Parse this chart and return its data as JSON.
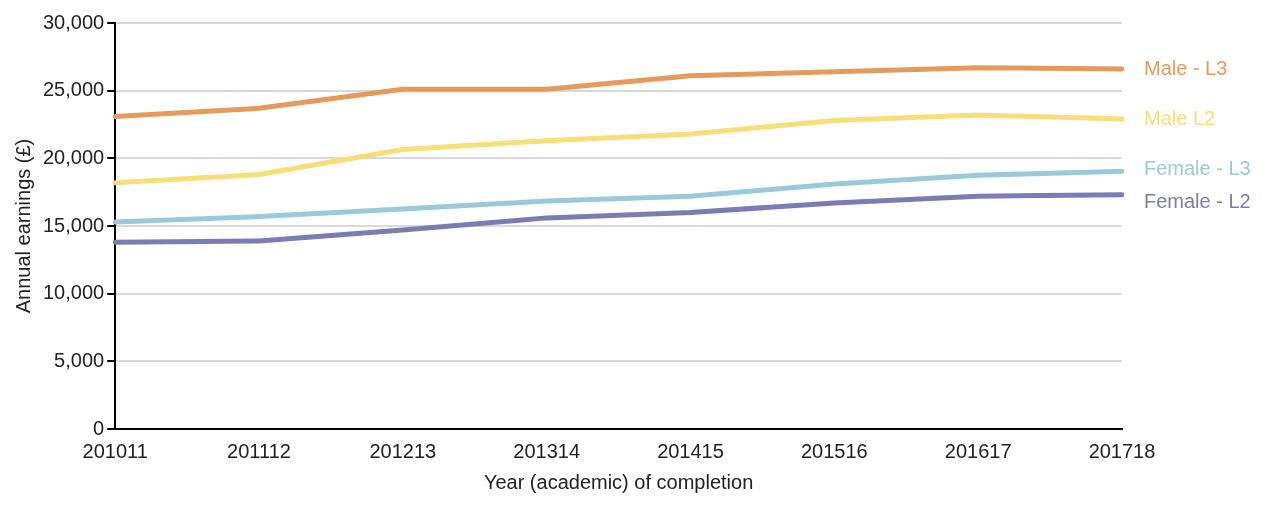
{
  "chart_data": {
    "type": "line",
    "xlabel": "Year (academic) of completion",
    "ylabel": "Annual earnings (£)",
    "categories": [
      "201011",
      "201112",
      "201213",
      "201314",
      "201415",
      "201516",
      "201617",
      "201718"
    ],
    "series": [
      {
        "name": "Male - L3",
        "color": "#e49b5b",
        "values": [
          23100,
          23700,
          25100,
          25100,
          26100,
          26400,
          26700,
          26600
        ]
      },
      {
        "name": "Male L2",
        "color": "#f8de78",
        "values": [
          18200,
          18800,
          20650,
          21300,
          21800,
          22800,
          23200,
          22900
        ]
      },
      {
        "name": "Female - L3",
        "color": "#99cad9",
        "values": [
          15300,
          15700,
          16250,
          16850,
          17200,
          18100,
          18750,
          19050
        ]
      },
      {
        "name": "Female - L2",
        "color": "#7b7cb4",
        "values": [
          13800,
          13900,
          14700,
          15600,
          16000,
          16700,
          17200,
          17300
        ]
      }
    ],
    "ylim": [
      0,
      30000
    ],
    "yticks": [
      0,
      {
        "value": 5000,
        "label": "5,000"
      },
      {
        "value": 10000,
        "label": "10,000"
      },
      {
        "value": 15000,
        "label": "15,000"
      },
      {
        "value": 20000,
        "label": "20,000"
      },
      {
        "value": 25000,
        "label": "25,000"
      },
      {
        "value": 30000,
        "label": "30,000"
      }
    ],
    "grid": "y",
    "legend": false,
    "marker": "none",
    "line_style": "solid"
  }
}
